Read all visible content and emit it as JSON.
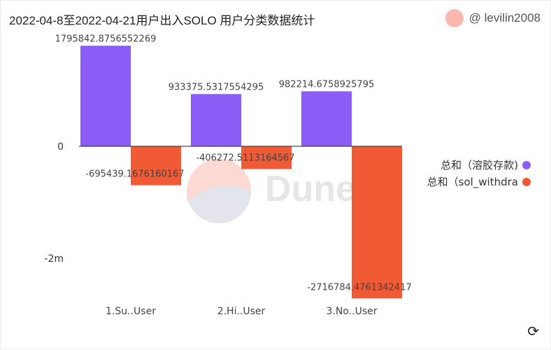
{
  "header": {
    "title": "2022-04-8至2022-04-21用户出入SOLO  用户分类数据统计",
    "author": "@ levilin2008"
  },
  "watermark": "Dune",
  "chart_data": {
    "type": "bar",
    "categories": [
      "1.Su..User",
      "2.Hi..User",
      "3.No..User"
    ],
    "series": [
      {
        "name": "总和（溶胶存款)",
        "color": "#8b5cf6",
        "values": [
          1795842.8756552269,
          933375.5317554295,
          982214.6758925795
        ],
        "labels": [
          "1795842.8756552269",
          "933375.5317554295",
          "982214.6758925795"
        ]
      },
      {
        "name": "总和（sol_withdra",
        "color": "#f05a35",
        "values": [
          -695439.1676160167,
          -406272.5113164567,
          -2716784.4761342416
        ],
        "labels": [
          "-695439.1676160167",
          "-406272.5113164567",
          "-2716784.4761342417"
        ]
      }
    ],
    "yticks": [
      {
        "value": 0,
        "label": "0"
      },
      {
        "value": -2000000,
        "label": "-2m"
      }
    ],
    "legend": "right",
    "grid": false
  }
}
